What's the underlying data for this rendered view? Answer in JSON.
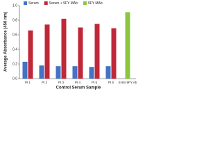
{
  "chart_data": {
    "type": "bar",
    "x_label": "Control Serum Sample",
    "y_label": "Average Absorbance (450 nm)",
    "categories": [
      "Pt 1",
      "Pt 2",
      "Pt 3",
      "Pt 4",
      "Pt 5",
      "Pt 6",
      "EHSI 9FY Ab"
    ],
    "series": [
      {
        "name": "Serum",
        "color": "#4472c4",
        "values": [
          0.23,
          0.18,
          0.17,
          0.17,
          0.16,
          0.17,
          null
        ]
      },
      {
        "name": "Serum + 9FY MAb",
        "color": "#c0283a",
        "values": [
          0.66,
          0.74,
          0.82,
          0.7,
          0.75,
          0.69,
          null
        ]
      },
      {
        "name": "9FY MAb",
        "color": "#8cc63f",
        "values": [
          null,
          null,
          null,
          null,
          null,
          null,
          0.91
        ]
      }
    ],
    "ylim": [
      0,
      1
    ],
    "yticks": [
      {
        "value": 0,
        "label": "0.0"
      },
      {
        "value": 0.2,
        "label": "0.2"
      },
      {
        "value": 0.4,
        "label": "0.4"
      },
      {
        "value": 0.6,
        "label": "0.6"
      },
      {
        "value": 0.8,
        "label": "0.8"
      },
      {
        "value": 1,
        "label": "1.0"
      }
    ],
    "legend": "top"
  }
}
